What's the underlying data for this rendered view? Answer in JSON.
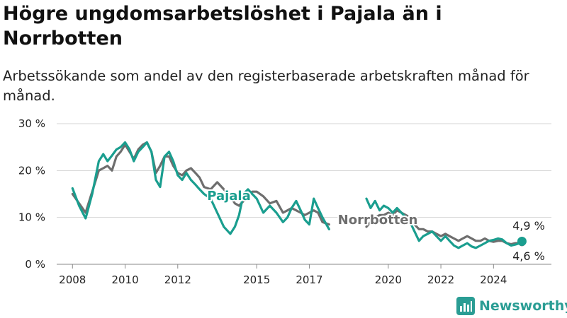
{
  "title": "Högre ungdomsarbetslöshet i Pajala än i Norrbotten",
  "subtitle": "Arbetssökande som andel av den registerbaserade arbetskraften månad för månad.",
  "brand": {
    "name": "Newsworthy",
    "logo_icon": "newsworthy-bar-chart-logo-icon"
  },
  "colors": {
    "pajala": "#1a9e8f",
    "norrbotten": "#6e6e6e",
    "grid": "#d4d4d4",
    "axis": "#888888"
  },
  "chart_data": {
    "type": "line",
    "title": "Högre ungdomsarbetslöshet i Pajala än i Norrbotten",
    "subtitle": "Arbetssökande som andel av den registerbaserade arbetskraften månad för månad.",
    "xlabel": "",
    "ylabel": "",
    "ylim": [
      0,
      30
    ],
    "y_ticks": [
      0,
      10,
      20,
      30
    ],
    "y_tick_labels": [
      "0 %",
      "10 %",
      "20 %",
      "30 %"
    ],
    "x_ticks": [
      2008,
      2010,
      2012,
      2015,
      2017,
      2020,
      2022,
      2024
    ],
    "x_tick_labels": [
      "2008",
      "2010",
      "2012",
      "2015",
      "2017",
      "2020",
      "2022",
      "2024"
    ],
    "grid": "horizontal",
    "legend": "inline labels",
    "end_labels": {
      "pajala": "4,9 %",
      "norrbotten": "4,6 %"
    },
    "series": [
      {
        "name": "Pajala",
        "x": [
          2008.0,
          2008.25,
          2008.5,
          2008.75,
          2009.0,
          2009.17,
          2009.33,
          2009.5,
          2009.67,
          2009.83,
          2010.0,
          2010.17,
          2010.33,
          2010.5,
          2010.67,
          2010.83,
          2011.0,
          2011.17,
          2011.33,
          2011.5,
          2011.67,
          2011.83,
          2012.0,
          2012.17,
          2012.33,
          2012.5,
          2012.67,
          2012.83,
          2013.0,
          2013.25,
          2013.5,
          2013.75,
          2014.0,
          2014.17,
          2014.33,
          2014.5,
          2014.67,
          2014.83,
          2015.0,
          2015.25,
          2015.5,
          2015.75,
          2016.0,
          2016.17,
          2016.33,
          2016.5,
          2016.67,
          2016.83,
          2017.0,
          2017.17,
          2017.33,
          2017.5,
          2017.75,
          null,
          2019.17,
          2019.33,
          2019.5,
          2019.67,
          2019.83,
          2020.0,
          2020.17,
          2020.33,
          2020.5,
          2020.67,
          2020.83,
          2021.0,
          2021.17,
          2021.33,
          2021.5,
          2021.67,
          2021.83,
          2022.0,
          2022.17,
          2022.33,
          2022.5,
          2022.67,
          2022.83,
          2023.0,
          2023.17,
          2023.33,
          2023.5,
          2023.67,
          2023.83,
          2024.0,
          2024.17,
          2024.33,
          2024.5,
          2024.67,
          2024.83,
          2025.0,
          2025.08
        ],
        "values": [
          16.2,
          12.5,
          9.8,
          15.0,
          22.0,
          23.5,
          22.0,
          23.2,
          24.5,
          25.0,
          26.0,
          24.5,
          22.0,
          24.0,
          25.0,
          26.0,
          24.0,
          18.0,
          16.5,
          23.0,
          24.0,
          22.0,
          19.0,
          18.0,
          19.5,
          18.0,
          17.0,
          16.0,
          15.0,
          14.0,
          11.0,
          8.0,
          6.5,
          8.0,
          10.5,
          15.0,
          16.0,
          15.0,
          14.0,
          11.0,
          12.5,
          11.0,
          9.0,
          10.0,
          12.0,
          13.5,
          11.5,
          9.5,
          8.5,
          14.0,
          12.0,
          10.0,
          7.5,
          null,
          14.0,
          12.0,
          13.5,
          11.5,
          12.5,
          12.0,
          11.0,
          12.0,
          11.0,
          10.0,
          9.0,
          7.0,
          5.0,
          6.0,
          6.5,
          7.0,
          6.0,
          5.0,
          6.0,
          5.0,
          4.0,
          3.5,
          4.0,
          4.5,
          3.8,
          3.5,
          4.0,
          4.5,
          5.0,
          5.2,
          5.5,
          5.3,
          4.5,
          4.0,
          4.2,
          4.5,
          4.9
        ]
      },
      {
        "name": "Norrbotten",
        "x": [
          2008.0,
          2008.25,
          2008.5,
          2008.75,
          2009.0,
          2009.17,
          2009.33,
          2009.5,
          2009.67,
          2009.83,
          2010.0,
          2010.17,
          2010.33,
          2010.5,
          2010.67,
          2010.83,
          2011.0,
          2011.17,
          2011.33,
          2011.5,
          2011.67,
          2011.83,
          2012.0,
          2012.17,
          2012.33,
          2012.5,
          2012.67,
          2012.83,
          2013.0,
          2013.25,
          2013.5,
          2013.75,
          2014.0,
          2014.17,
          2014.33,
          2014.5,
          2014.67,
          2014.83,
          2015.0,
          2015.25,
          2015.5,
          2015.75,
          2016.0,
          2016.17,
          2016.33,
          2016.5,
          2016.67,
          2016.83,
          2017.0,
          2017.17,
          2017.33,
          2017.5,
          2017.75,
          null,
          2019.17,
          2019.33,
          2019.5,
          2019.67,
          2019.83,
          2020.0,
          2020.17,
          2020.33,
          2020.5,
          2020.67,
          2020.83,
          2021.0,
          2021.17,
          2021.33,
          2021.5,
          2021.67,
          2021.83,
          2022.0,
          2022.17,
          2022.33,
          2022.5,
          2022.67,
          2022.83,
          2023.0,
          2023.17,
          2023.33,
          2023.5,
          2023.67,
          2023.83,
          2024.0,
          2024.17,
          2024.33,
          2024.5,
          2024.67,
          2024.83,
          2025.0,
          2025.08
        ],
        "values": [
          15.0,
          13.0,
          11.0,
          15.5,
          20.0,
          20.5,
          21.0,
          20.0,
          23.0,
          24.0,
          25.5,
          24.0,
          22.5,
          24.5,
          25.5,
          26.0,
          24.0,
          19.5,
          21.0,
          23.0,
          23.0,
          21.0,
          19.5,
          19.0,
          20.0,
          20.5,
          19.5,
          18.5,
          16.5,
          16.0,
          17.5,
          16.0,
          14.5,
          13.0,
          12.5,
          13.5,
          14.5,
          15.5,
          15.5,
          14.5,
          13.0,
          13.5,
          11.0,
          11.5,
          12.0,
          11.5,
          11.0,
          10.5,
          11.0,
          11.5,
          11.0,
          9.0,
          8.5,
          null,
          8.0,
          9.0,
          10.0,
          10.5,
          10.5,
          11.0,
          10.5,
          11.5,
          11.0,
          10.5,
          10.0,
          8.5,
          7.5,
          7.5,
          7.0,
          7.0,
          6.5,
          6.0,
          6.5,
          6.0,
          5.5,
          5.0,
          5.5,
          6.0,
          5.5,
          5.0,
          5.0,
          5.5,
          5.0,
          4.8,
          5.0,
          5.0,
          4.5,
          4.3,
          4.5,
          4.5,
          4.6
        ]
      }
    ]
  }
}
